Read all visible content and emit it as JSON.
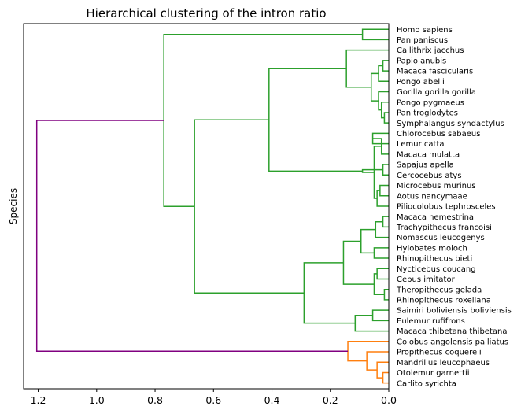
{
  "chart_data": {
    "type": "dendrogram",
    "title": "Hierarchical clustering of the intron ratio",
    "ylabel": "Species",
    "xlabel": "",
    "xlim": [
      1.25,
      0.0
    ],
    "x_ticks": [
      1.2,
      1.0,
      0.8,
      0.6,
      0.4,
      0.2,
      0.0
    ],
    "x_tick_labels": [
      "1.2",
      "1.0",
      "0.8",
      "0.6",
      "0.4",
      "0.2",
      "0.0"
    ],
    "orientation": "left",
    "colors": {
      "root": "#800080",
      "green_cluster": "#2ca02c",
      "orange_cluster": "#ff7f0e"
    },
    "leaves": [
      "Homo sapiens",
      "Pan paniscus",
      "Callithrix jacchus",
      "Papio anubis",
      "Macaca fascicularis",
      "Pongo abelii",
      "Gorilla gorilla gorilla",
      "Pongo pygmaeus",
      "Pan troglodytes",
      "Symphalangus syndactylus",
      "Chlorocebus sabaeus",
      "Lemur catta",
      "Macaca mulatta",
      "Sapajus apella",
      "Cercocebus atys",
      "Microcebus murinus",
      "Aotus nancymaae",
      "Piliocolobus tephrosceles",
      "Macaca nemestrina",
      "Trachypithecus francoisi",
      "Nomascus leucogenys",
      "Hylobates moloch",
      "Rhinopithecus bieti",
      "Nycticebus coucang",
      "Cebus imitator",
      "Theropithecus gelada",
      "Rhinopithecus roxellana",
      "Saimiri boliviensis boliviensis",
      "Eulemur rufifrons",
      "Macaca thibetana thibetana",
      "Colobus angolensis palliatus",
      "Propithecus coquereli",
      "Mandrillus leucophaeus",
      "Otolemur garnettii",
      "Carlito syrichta"
    ],
    "merges": [
      {
        "a": 0,
        "b": 1,
        "height": 0.09,
        "color": "green_cluster"
      },
      {
        "a": 3,
        "b": 4,
        "height": 0.02,
        "color": "green_cluster"
      },
      {
        "a": 36,
        "b": 5,
        "height": 0.035,
        "color": "green_cluster"
      },
      {
        "a": 8,
        "b": 9,
        "height": 0.015,
        "color": "green_cluster"
      },
      {
        "a": 7,
        "b": 38,
        "height": 0.025,
        "color": "green_cluster"
      },
      {
        "a": 6,
        "b": 39,
        "height": 0.035,
        "color": "green_cluster"
      },
      {
        "a": 37,
        "b": 40,
        "height": 0.06,
        "color": "green_cluster"
      },
      {
        "a": 2,
        "b": 41,
        "height": 0.145,
        "color": "green_cluster"
      },
      {
        "a": 10,
        "b": 11,
        "height": 0.055,
        "color": "green_cluster"
      },
      {
        "a": 13,
        "b": 14,
        "height": 0.02,
        "color": "green_cluster"
      },
      {
        "a": 12,
        "b": 43,
        "height": 0.025,
        "color": "green_cluster"
      },
      {
        "a": 15,
        "b": 16,
        "height": 0.03,
        "color": "green_cluster"
      },
      {
        "a": 46,
        "b": 17,
        "height": 0.04,
        "color": "green_cluster"
      },
      {
        "a": 45,
        "b": 47,
        "height": 0.05,
        "color": "green_cluster"
      },
      {
        "a": 44,
        "b": 48,
        "height": 0.09,
        "color": "green_cluster"
      },
      {
        "a": 42,
        "b": 49,
        "height": 0.41,
        "color": "green_cluster"
      },
      {
        "a": 18,
        "b": 19,
        "height": 0.02,
        "color": "green_cluster"
      },
      {
        "a": 51,
        "b": 20,
        "height": 0.045,
        "color": "green_cluster"
      },
      {
        "a": 21,
        "b": 22,
        "height": 0.05,
        "color": "green_cluster"
      },
      {
        "a": 52,
        "b": 53,
        "height": 0.095,
        "color": "green_cluster"
      },
      {
        "a": 23,
        "b": 24,
        "height": 0.04,
        "color": "green_cluster"
      },
      {
        "a": 25,
        "b": 26,
        "height": 0.015,
        "color": "green_cluster"
      },
      {
        "a": 55,
        "b": 56,
        "height": 0.05,
        "color": "green_cluster"
      },
      {
        "a": 54,
        "b": 57,
        "height": 0.155,
        "color": "green_cluster"
      },
      {
        "a": 27,
        "b": 28,
        "height": 0.055,
        "color": "green_cluster"
      },
      {
        "a": 59,
        "b": 29,
        "height": 0.115,
        "color": "green_cluster"
      },
      {
        "a": 58,
        "b": 60,
        "height": 0.29,
        "color": "green_cluster"
      },
      {
        "a": 50,
        "b": 61,
        "height": 0.665,
        "color": "green_cluster"
      },
      {
        "a": 35,
        "b": 62,
        "height": 0.77,
        "color": "green_cluster"
      },
      {
        "a": 33,
        "b": 34,
        "height": 0.02,
        "color": "orange_cluster"
      },
      {
        "a": 32,
        "b": 64,
        "height": 0.04,
        "color": "orange_cluster"
      },
      {
        "a": 31,
        "b": 65,
        "height": 0.075,
        "color": "orange_cluster"
      },
      {
        "a": 30,
        "b": 66,
        "height": 0.14,
        "color": "orange_cluster"
      },
      {
        "a": 63,
        "b": 67,
        "height": 1.205,
        "color": "root"
      }
    ]
  }
}
